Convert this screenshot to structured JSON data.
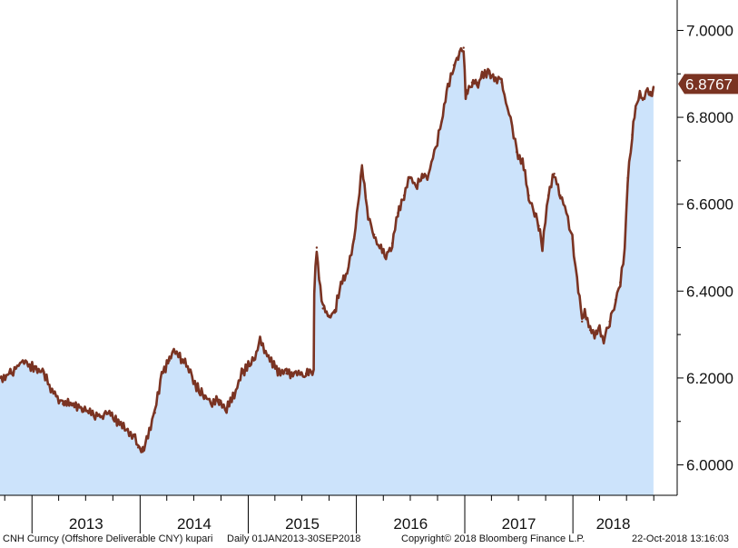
{
  "chart_data": {
    "type": "area",
    "title": "",
    "xlabel": "",
    "ylabel": "",
    "ylim": [
      5.93,
      7.07
    ],
    "xlim": [
      "2012-09-15",
      "2018-12-19"
    ],
    "grid": false,
    "yticks": [
      "6.0000",
      "6.2000",
      "6.4000",
      "6.6000",
      "6.8000",
      "7.0000"
    ],
    "year_labels": [
      "2013",
      "2014",
      "2015",
      "2016",
      "2017",
      "2018"
    ],
    "last_value_label": "6.8767",
    "line_color": "#7a3322",
    "fill_color": "#cce3fb",
    "series": [
      {
        "x": [
          "2012-09-15",
          "2012-10-20",
          "2012-12-01",
          "2013-01-15",
          "2013-02-10",
          "2013-03-10",
          "2013-04-15",
          "2013-05-20",
          "2013-06-20",
          "2013-07-20",
          "2013-08-20",
          "2013-09-15",
          "2013-10-15",
          "2013-11-15",
          "2013-12-10",
          "2013-12-25",
          "2014-01-10",
          "2014-02-01",
          "2014-02-20",
          "2014-03-15",
          "2014-04-10",
          "2014-04-25",
          "2014-05-15",
          "2014-06-15",
          "2014-07-10",
          "2014-08-05",
          "2014-09-01",
          "2014-09-25",
          "2014-10-20",
          "2014-11-15",
          "2014-12-10",
          "2015-01-01",
          "2015-01-20",
          "2015-02-10",
          "2015-03-01",
          "2015-03-20",
          "2015-04-15",
          "2015-05-10",
          "2015-06-01",
          "2015-06-25",
          "2015-07-15",
          "2015-08-10",
          "2015-08-12",
          "2015-08-20",
          "2015-08-28",
          "2015-09-10",
          "2015-10-01",
          "2015-10-20",
          "2015-11-10",
          "2015-12-01",
          "2015-12-25",
          "2016-01-07",
          "2016-01-20",
          "2016-02-10",
          "2016-03-01",
          "2016-03-20",
          "2016-04-10",
          "2016-05-01",
          "2016-05-20",
          "2016-06-10",
          "2016-06-30",
          "2016-07-20",
          "2016-08-10",
          "2016-09-01",
          "2016-09-25",
          "2016-10-15",
          "2016-11-05",
          "2016-11-25",
          "2016-12-10",
          "2016-12-28",
          "2017-01-04",
          "2017-01-10",
          "2017-01-25",
          "2017-02-15",
          "2017-03-05",
          "2017-03-25",
          "2017-04-15",
          "2017-05-05",
          "2017-05-25",
          "2017-06-10",
          "2017-06-25",
          "2017-07-15",
          "2017-08-05",
          "2017-08-25",
          "2017-09-08",
          "2017-09-20",
          "2017-10-10",
          "2017-10-30",
          "2017-11-20",
          "2017-12-10",
          "2017-12-30",
          "2018-01-15",
          "2018-02-01",
          "2018-02-10",
          "2018-02-28",
          "2018-03-20",
          "2018-04-01",
          "2018-04-15",
          "2018-05-05",
          "2018-05-25",
          "2018-06-10",
          "2018-06-25",
          "2018-07-05",
          "2018-07-20",
          "2018-08-01",
          "2018-08-15",
          "2018-08-25",
          "2018-09-10",
          "2018-09-20",
          "2018-09-30"
        ],
        "y": [
          6.2,
          6.21,
          6.24,
          6.22,
          6.21,
          6.17,
          6.14,
          6.14,
          6.13,
          6.12,
          6.11,
          6.12,
          6.1,
          6.08,
          6.07,
          6.04,
          6.03,
          6.08,
          6.12,
          6.21,
          6.24,
          6.26,
          6.25,
          6.22,
          6.18,
          6.16,
          6.14,
          6.15,
          6.13,
          6.16,
          6.21,
          6.23,
          6.24,
          6.29,
          6.26,
          6.24,
          6.21,
          6.21,
          6.21,
          6.21,
          6.21,
          6.22,
          6.4,
          6.5,
          6.43,
          6.36,
          6.34,
          6.35,
          6.42,
          6.44,
          6.52,
          6.6,
          6.69,
          6.57,
          6.53,
          6.5,
          6.48,
          6.51,
          6.58,
          6.62,
          6.66,
          6.64,
          6.66,
          6.67,
          6.73,
          6.79,
          6.87,
          6.92,
          6.94,
          6.96,
          6.85,
          6.86,
          6.88,
          6.88,
          6.9,
          6.9,
          6.89,
          6.88,
          6.82,
          6.78,
          6.72,
          6.7,
          6.62,
          6.58,
          6.55,
          6.5,
          6.62,
          6.67,
          6.62,
          6.58,
          6.52,
          6.43,
          6.33,
          6.35,
          6.31,
          6.3,
          6.31,
          6.29,
          6.33,
          6.38,
          6.42,
          6.5,
          6.66,
          6.76,
          6.82,
          6.85,
          6.84,
          6.86,
          6.85,
          6.87
        ]
      }
    ]
  },
  "footer": {
    "security": "CNH Curncy (Offshore Deliverable CNY) kupari",
    "range": "Daily 01JAN2013-30SEP2018",
    "copyright": "Copyright© 2018 Bloomberg Finance L.P.",
    "timestamp": "22-Oct-2018 13:16:03"
  }
}
